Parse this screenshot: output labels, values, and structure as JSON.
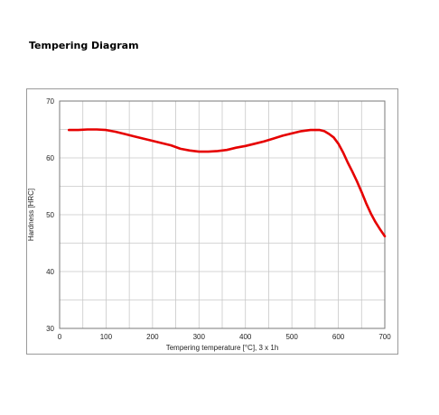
{
  "page": {
    "title": "Tempering Diagram"
  },
  "chart_data": {
    "type": "line",
    "xlabel": "Tempering temperature [°C], 3 x 1h",
    "ylabel": "Hardness [HRC]",
    "xlim": [
      0,
      700
    ],
    "ylim": [
      30,
      70
    ],
    "x_ticks": [
      0,
      100,
      200,
      300,
      400,
      500,
      600,
      700
    ],
    "y_ticks": [
      30,
      40,
      50,
      60,
      70
    ],
    "grid": true,
    "line_color": "#e60000",
    "series": [
      {
        "x": [
          20,
          40,
          60,
          80,
          100,
          120,
          140,
          160,
          180,
          200,
          220,
          240,
          260,
          280,
          300,
          320,
          340,
          360,
          380,
          400,
          420,
          440,
          460,
          480,
          500,
          520,
          540,
          560,
          570,
          580,
          590,
          600,
          610,
          620,
          630,
          640,
          650,
          660,
          670,
          680,
          690,
          700
        ],
        "y": [
          64.9,
          64.9,
          65.0,
          65.0,
          64.9,
          64.6,
          64.2,
          63.8,
          63.4,
          63.0,
          62.6,
          62.2,
          61.6,
          61.3,
          61.1,
          61.1,
          61.2,
          61.4,
          61.8,
          62.1,
          62.5,
          62.9,
          63.4,
          63.9,
          64.3,
          64.7,
          64.9,
          64.9,
          64.7,
          64.2,
          63.6,
          62.5,
          61.0,
          59.2,
          57.6,
          55.9,
          54.0,
          52.0,
          50.2,
          48.7,
          47.4,
          46.2
        ]
      }
    ]
  }
}
